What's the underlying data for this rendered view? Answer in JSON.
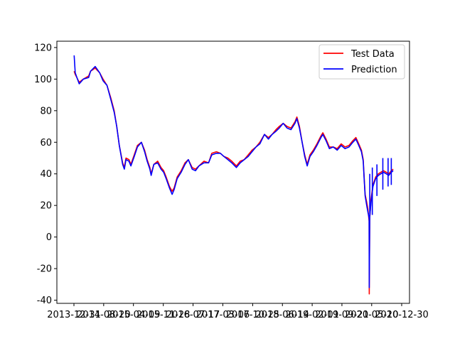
{
  "chart_data": {
    "type": "line",
    "title": "",
    "xlabel": "",
    "ylabel": "",
    "xlim": [
      "2013-08-20",
      "2021-03-01"
    ],
    "ylim": [
      -42,
      124
    ],
    "x_tick_labels": [
      "2013-12-31",
      "2014-08-20",
      "2015-04-09",
      "2015-11-28",
      "2016-07-17",
      "2017-03-06",
      "2017-10-25",
      "2018-06-14",
      "2019-02-01",
      "2019-09-21",
      "2020-05-10",
      "2020-12-30"
    ],
    "y_ticks": [
      -40,
      -20,
      0,
      20,
      40,
      60,
      80,
      100,
      120
    ],
    "grid": false,
    "legend": {
      "position": "top-right"
    },
    "series": [
      {
        "name": "Test Data",
        "color": "#ff0000",
        "x": [
          "2014-01-02",
          "2014-01-10",
          "2014-02-10",
          "2014-03-15",
          "2014-04-25",
          "2014-05-10",
          "2014-06-15",
          "2014-07-20",
          "2014-08-15",
          "2014-09-15",
          "2014-10-15",
          "2014-11-10",
          "2014-11-30",
          "2014-12-20",
          "2015-01-15",
          "2015-01-28",
          "2015-02-10",
          "2015-03-05",
          "2015-03-20",
          "2015-04-15",
          "2015-05-10",
          "2015-06-10",
          "2015-07-05",
          "2015-07-25",
          "2015-08-15",
          "2015-08-25",
          "2015-09-15",
          "2015-10-15",
          "2015-11-10",
          "2015-12-01",
          "2015-12-20",
          "2016-01-15",
          "2016-02-05",
          "2016-02-20",
          "2016-03-15",
          "2016-04-15",
          "2016-05-15",
          "2016-06-10",
          "2016-07-10",
          "2016-08-05",
          "2016-09-01",
          "2016-10-10",
          "2016-11-15",
          "2016-12-10",
          "2017-01-15",
          "2017-02-15",
          "2017-03-15",
          "2017-04-15",
          "2017-05-15",
          "2017-06-20",
          "2017-07-20",
          "2017-08-20",
          "2017-09-20",
          "2017-10-20",
          "2017-11-20",
          "2017-12-20",
          "2018-01-25",
          "2018-02-25",
          "2018-03-25",
          "2018-04-25",
          "2018-05-20",
          "2018-06-20",
          "2018-07-20",
          "2018-08-20",
          "2018-09-20",
          "2018-10-05",
          "2018-10-25",
          "2018-11-15",
          "2018-12-05",
          "2018-12-24",
          "2019-01-15",
          "2019-02-10",
          "2019-03-10",
          "2019-04-10",
          "2019-04-25",
          "2019-05-20",
          "2019-06-15",
          "2019-07-15",
          "2019-08-15",
          "2019-09-15",
          "2019-10-15",
          "2019-11-15",
          "2019-12-15",
          "2020-01-08",
          "2020-01-30",
          "2020-02-20",
          "2020-03-05",
          "2020-03-12",
          "2020-03-20",
          "2020-04-01",
          "2020-04-10",
          "2020-04-20",
          "2020-04-21",
          "2020-04-25",
          "2020-05-05",
          "2020-05-20",
          "2020-06-10",
          "2020-07-01",
          "2020-07-20",
          "2020-08-10",
          "2020-09-01",
          "2020-09-20",
          "2020-10-10",
          "2020-10-25"
        ],
        "y": [
          105,
          103,
          98,
          100,
          102,
          105,
          107,
          104,
          100,
          96,
          88,
          80,
          70,
          58,
          47,
          44,
          50,
          49,
          46,
          52,
          58,
          60,
          55,
          49,
          44,
          40,
          46,
          48,
          44,
          42,
          38,
          32,
          29,
          31,
          38,
          42,
          47,
          49,
          44,
          43,
          45,
          48,
          47,
          53,
          54,
          53,
          51,
          50,
          48,
          45,
          48,
          49,
          52,
          55,
          57,
          60,
          65,
          63,
          65,
          68,
          70,
          72,
          70,
          69,
          73,
          76,
          70,
          60,
          52,
          46,
          52,
          55,
          59,
          64,
          66,
          62,
          57,
          57,
          56,
          59,
          57,
          58,
          61,
          63,
          59,
          55,
          49,
          38,
          27,
          22,
          18,
          10,
          -36,
          12,
          24,
          33,
          38,
          40,
          41,
          42,
          41,
          40,
          42,
          43
        ]
      },
      {
        "name": "Prediction",
        "color": "#0000ff",
        "x": [
          "2014-01-02",
          "2014-01-10",
          "2014-02-10",
          "2014-03-15",
          "2014-04-25",
          "2014-05-10",
          "2014-06-15",
          "2014-07-20",
          "2014-08-15",
          "2014-09-15",
          "2014-10-15",
          "2014-11-10",
          "2014-11-30",
          "2014-12-20",
          "2015-01-15",
          "2015-01-28",
          "2015-02-10",
          "2015-03-05",
          "2015-03-20",
          "2015-04-15",
          "2015-05-10",
          "2015-06-10",
          "2015-07-05",
          "2015-07-25",
          "2015-08-15",
          "2015-08-25",
          "2015-09-15",
          "2015-10-15",
          "2015-11-10",
          "2015-12-01",
          "2015-12-20",
          "2016-01-15",
          "2016-02-05",
          "2016-02-20",
          "2016-03-15",
          "2016-04-15",
          "2016-05-15",
          "2016-06-10",
          "2016-07-10",
          "2016-08-05",
          "2016-09-01",
          "2016-10-10",
          "2016-11-15",
          "2016-12-10",
          "2017-01-15",
          "2017-02-15",
          "2017-03-15",
          "2017-04-15",
          "2017-05-15",
          "2017-06-20",
          "2017-07-20",
          "2017-08-20",
          "2017-09-20",
          "2017-10-20",
          "2017-11-20",
          "2017-12-20",
          "2018-01-25",
          "2018-02-25",
          "2018-03-25",
          "2018-04-25",
          "2018-05-20",
          "2018-06-20",
          "2018-07-20",
          "2018-08-20",
          "2018-09-20",
          "2018-10-05",
          "2018-10-25",
          "2018-11-15",
          "2018-12-05",
          "2018-12-24",
          "2019-01-15",
          "2019-02-10",
          "2019-03-10",
          "2019-04-10",
          "2019-04-25",
          "2019-05-20",
          "2019-06-15",
          "2019-07-15",
          "2019-08-15",
          "2019-09-15",
          "2019-10-15",
          "2019-11-15",
          "2019-12-15",
          "2020-01-08",
          "2020-01-30",
          "2020-02-20",
          "2020-03-05",
          "2020-03-12",
          "2020-03-20",
          "2020-04-01",
          "2020-04-10",
          "2020-04-20",
          "2020-04-21",
          "2020-04-25",
          "2020-05-05",
          "2020-05-20",
          "2020-06-10",
          "2020-07-01",
          "2020-07-20",
          "2020-08-10",
          "2020-09-01",
          "2020-09-20",
          "2020-10-10",
          "2020-10-25"
        ],
        "y": [
          115,
          104,
          97,
          100,
          101,
          105,
          108,
          104,
          99,
          96,
          87,
          79,
          70,
          58,
          46,
          43,
          49,
          48,
          45,
          51,
          57,
          60,
          54,
          48,
          43,
          39,
          46,
          47,
          43,
          41,
          37,
          31,
          27,
          30,
          37,
          41,
          46,
          49,
          43,
          42,
          45,
          47,
          47,
          52,
          53,
          53,
          51,
          49,
          47,
          44,
          47,
          49,
          51,
          54,
          57,
          59,
          65,
          62,
          65,
          67,
          69,
          72,
          69,
          68,
          72,
          75,
          69,
          60,
          51,
          45,
          51,
          54,
          58,
          63,
          65,
          61,
          56,
          57,
          55,
          58,
          56,
          57,
          60,
          62,
          58,
          54,
          48,
          37,
          26,
          20,
          16,
          12,
          -32,
          13,
          22,
          32,
          37,
          39,
          40,
          41,
          40,
          39,
          41,
          42
        ]
      }
    ],
    "spikes": [
      {
        "series": "Prediction",
        "x": "2020-04-25",
        "y_low": 12,
        "y_high": 40
      },
      {
        "series": "Prediction",
        "x": "2020-05-15",
        "y_low": 14,
        "y_high": 44
      },
      {
        "series": "Prediction",
        "x": "2020-06-20",
        "y_low": 26,
        "y_high": 46
      },
      {
        "series": "Prediction",
        "x": "2020-08-05",
        "y_low": 30,
        "y_high": 50
      },
      {
        "series": "Prediction",
        "x": "2020-09-15",
        "y_low": 32,
        "y_high": 50
      },
      {
        "series": "Prediction",
        "x": "2020-10-10",
        "y_low": 33,
        "y_high": 50
      }
    ]
  }
}
